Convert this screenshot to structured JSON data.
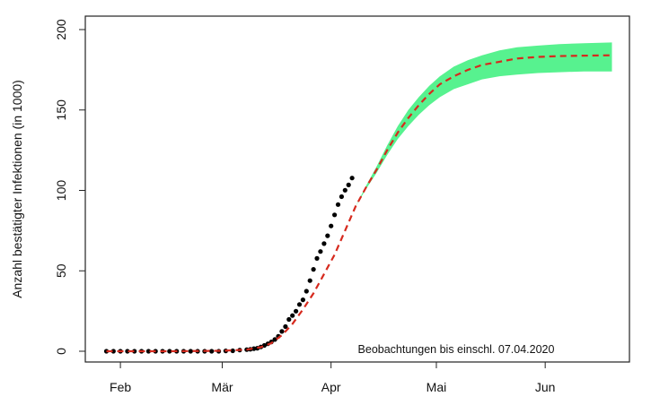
{
  "chart_data": {
    "type": "line",
    "title": "",
    "xlabel": "",
    "ylabel": "Anzahl bestätigter Infektionen (in 1000)",
    "annotation": "Beobachtungen bis einschl. 07.04.2020",
    "grid": false,
    "xlim": [
      "2020-01-22",
      "2020-06-25"
    ],
    "ylim": [
      0,
      200
    ],
    "x_ticks": [
      {
        "date": "2020-02-01",
        "label": "Feb"
      },
      {
        "date": "2020-03-01",
        "label": "Mär"
      },
      {
        "date": "2020-04-01",
        "label": "Apr"
      },
      {
        "date": "2020-05-01",
        "label": "Mai"
      },
      {
        "date": "2020-06-01",
        "label": "Jun"
      }
    ],
    "y_ticks": [
      0,
      50,
      100,
      150,
      200
    ],
    "colors": {
      "observed": "#000000",
      "fit": "#d62a1e",
      "band": "#57f28f"
    },
    "observed": {
      "x": [
        "2020-01-28",
        "2020-01-30",
        "2020-02-01",
        "2020-02-03",
        "2020-02-05",
        "2020-02-07",
        "2020-02-09",
        "2020-02-11",
        "2020-02-13",
        "2020-02-15",
        "2020-02-17",
        "2020-02-19",
        "2020-02-21",
        "2020-02-23",
        "2020-02-25",
        "2020-02-27",
        "2020-02-29",
        "2020-03-02",
        "2020-03-04",
        "2020-03-06",
        "2020-03-08",
        "2020-03-09",
        "2020-03-10",
        "2020-03-11",
        "2020-03-12",
        "2020-03-13",
        "2020-03-14",
        "2020-03-15",
        "2020-03-16",
        "2020-03-17",
        "2020-03-18",
        "2020-03-19",
        "2020-03-20",
        "2020-03-21",
        "2020-03-22",
        "2020-03-23",
        "2020-03-24",
        "2020-03-25",
        "2020-03-26",
        "2020-03-27",
        "2020-03-28",
        "2020-03-29",
        "2020-03-30",
        "2020-03-31",
        "2020-04-01",
        "2020-04-02",
        "2020-04-03",
        "2020-04-04",
        "2020-04-05",
        "2020-04-06",
        "2020-04-07"
      ],
      "y": [
        0,
        0,
        0,
        0,
        0,
        0,
        0,
        0,
        0,
        0,
        0,
        0,
        0,
        0,
        0,
        0,
        0,
        0.2,
        0.3,
        0.7,
        1.0,
        1.2,
        1.6,
        1.9,
        2.7,
        3.6,
        4.6,
        5.8,
        7.3,
        9.3,
        12.3,
        15.3,
        19.8,
        22.2,
        24.9,
        29.1,
        32.0,
        37.3,
        43.9,
        50.9,
        57.7,
        62.0,
        66.9,
        71.8,
        77.9,
        84.8,
        91.2,
        96.1,
        100.1,
        103.4,
        107.7
      ]
    },
    "fit": {
      "x": [
        "2020-01-28",
        "2020-02-15",
        "2020-03-01",
        "2020-03-08",
        "2020-03-12",
        "2020-03-15",
        "2020-03-18",
        "2020-03-21",
        "2020-03-24",
        "2020-03-27",
        "2020-03-30",
        "2020-04-02",
        "2020-04-05",
        "2020-04-08",
        "2020-04-11",
        "2020-04-14",
        "2020-04-17",
        "2020-04-20",
        "2020-04-23",
        "2020-04-26",
        "2020-04-29",
        "2020-05-02",
        "2020-05-06",
        "2020-05-10",
        "2020-05-14",
        "2020-05-19",
        "2020-05-24",
        "2020-05-30",
        "2020-06-05",
        "2020-06-12",
        "2020-06-20"
      ],
      "y": [
        0,
        0,
        0.3,
        1.0,
        2.5,
        5.0,
        10,
        17,
        26,
        36,
        48,
        60,
        75,
        90,
        102,
        113,
        125,
        136,
        145,
        153,
        160,
        166,
        171,
        175,
        178,
        180,
        182,
        183,
        183.5,
        183.8,
        184
      ]
    },
    "band": {
      "x": [
        "2020-04-08",
        "2020-04-11",
        "2020-04-14",
        "2020-04-17",
        "2020-04-20",
        "2020-04-23",
        "2020-04-26",
        "2020-04-29",
        "2020-05-02",
        "2020-05-06",
        "2020-05-10",
        "2020-05-14",
        "2020-05-19",
        "2020-05-24",
        "2020-05-30",
        "2020-06-05",
        "2020-06-12",
        "2020-06-20"
      ],
      "upper": [
        90,
        103,
        115,
        128,
        140,
        150,
        158,
        165,
        171,
        177,
        181,
        184,
        187,
        189,
        190,
        191,
        191.5,
        192
      ],
      "lower": [
        90,
        101,
        111,
        122,
        132,
        140,
        147,
        153,
        158,
        163,
        166,
        169,
        171,
        172,
        173,
        173.5,
        174,
        174
      ]
    }
  }
}
